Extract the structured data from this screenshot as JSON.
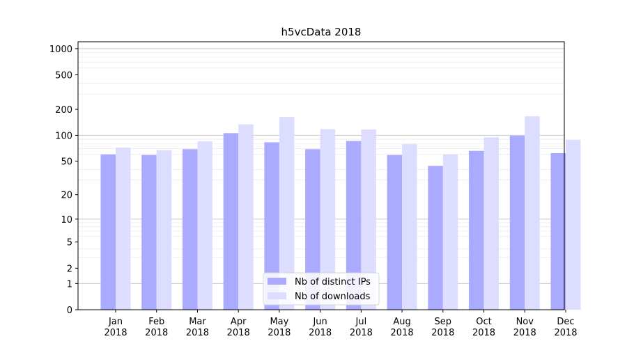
{
  "chart_data": {
    "type": "bar",
    "title": "h5vcData 2018",
    "xlabel": "",
    "ylabel": "",
    "y_scale": "log(1+y)",
    "ylim": [
      0,
      1200
    ],
    "yticks": [
      0,
      1,
      2,
      5,
      10,
      20,
      50,
      100,
      200,
      500,
      1000
    ],
    "grid": "horizontal",
    "legend_position": "bottom-center",
    "categories": [
      "Jan\n2018",
      "Feb\n2018",
      "Mar\n2018",
      "Apr\n2018",
      "May\n2018",
      "Jun\n2018",
      "Jul\n2018",
      "Aug\n2018",
      "Sep\n2018",
      "Oct\n2018",
      "Nov\n2018",
      "Dec\n2018"
    ],
    "series": [
      {
        "name": "Nb of distinct IPs",
        "color": "#aaaaff",
        "values": [
          60,
          59,
          69,
          106,
          83,
          69,
          86,
          59,
          44,
          66,
          99,
          62
        ]
      },
      {
        "name": "Nb of downloads",
        "color": "#ddddff",
        "values": [
          72,
          67,
          85,
          134,
          163,
          118,
          117,
          79,
          60,
          95,
          166,
          89
        ]
      }
    ]
  }
}
